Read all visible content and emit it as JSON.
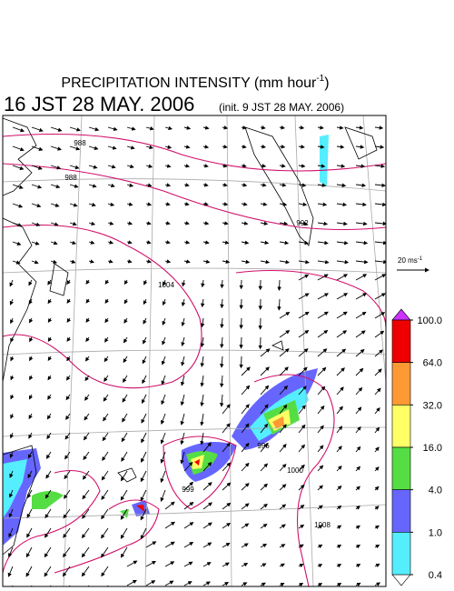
{
  "header": {
    "title": "PRECIPITATION INTENSITY (mm hour",
    "title_exponent": "-1",
    "title_close": ")",
    "valid_time": "16 JST 28 MAY. 2006",
    "init_time": "(init. 9 JST 28 MAY. 2006)"
  },
  "wind_scale": {
    "label": "20 ms",
    "exponent": "-1"
  },
  "colorbar": {
    "levels": [
      {
        "value": 100,
        "label": "100.0"
      },
      {
        "value": 64,
        "label": "64.0"
      },
      {
        "value": 32,
        "label": "32.0"
      },
      {
        "value": 16,
        "label": "16.0"
      },
      {
        "value": 4,
        "label": "4.0"
      },
      {
        "value": 1,
        "label": "1.0"
      },
      {
        "value": 0.4,
        "label": "0.4"
      }
    ],
    "colors": [
      "#ee0000",
      "#ff9933",
      "#ffff66",
      "#55dd44",
      "#6666ff",
      "#55eeff"
    ],
    "over_color": "#cc33ff",
    "under_color": "#ffffff"
  },
  "isobar_labels": [
    "988",
    "988",
    "992",
    "1004",
    "996",
    "1000",
    "999",
    "1008"
  ]
}
